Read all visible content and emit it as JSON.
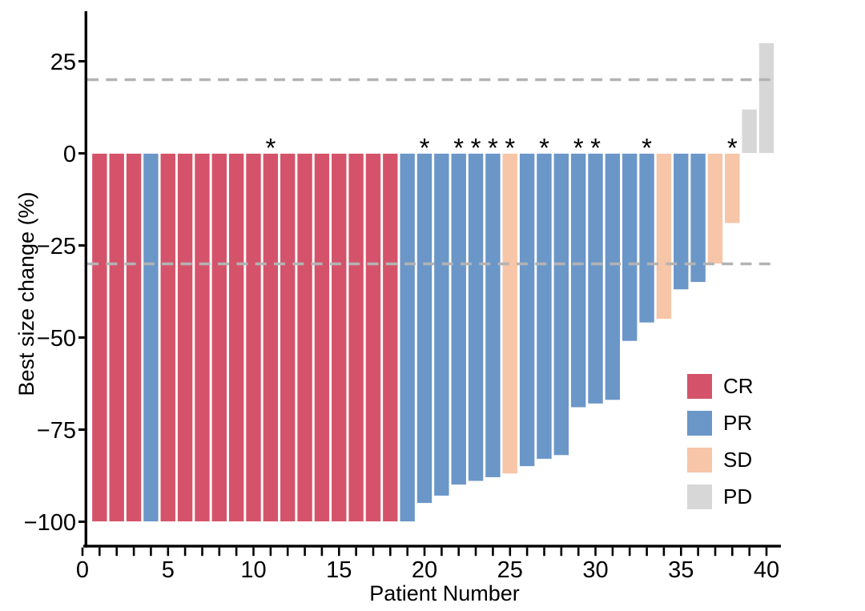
{
  "chart_data": {
    "type": "bar",
    "variant": "waterfall",
    "title": "",
    "xlabel": "Patient Number",
    "ylabel": "Best size change (%)",
    "x_major_ticks": [
      0,
      5,
      10,
      15,
      20,
      25,
      30,
      35,
      40
    ],
    "x_minor_tick_step": 1,
    "x_tick_min": 0,
    "x_tick_max": 40,
    "y_ticks": [
      25,
      0,
      -25,
      -50,
      -75,
      -100
    ],
    "ylim": [
      -109,
      38
    ],
    "grid": "off",
    "background": "#FFFFFF",
    "axis_color": "#000000",
    "bar_outline_color": "#FFFFFF",
    "annotation_symbol": "*",
    "reference_lines": [
      {
        "name": "upper-threshold",
        "y": 20,
        "color": "#B3B3B3",
        "style": "dashed"
      },
      {
        "name": "lower-threshold",
        "y": -30,
        "color": "#B3B3B3",
        "style": "dashed"
      }
    ],
    "colors": {
      "CR": "#D5536A",
      "PR": "#6B96C8",
      "SD": "#F7C5A8",
      "PD": "#D7D7D7"
    },
    "legend": {
      "position": "inside-right",
      "entries": [
        {
          "label": "CR"
        },
        {
          "label": "PR"
        },
        {
          "label": "SD"
        },
        {
          "label": "PD"
        }
      ]
    },
    "series": [
      {
        "patient": 1,
        "value": -100,
        "response": "CR",
        "star": false
      },
      {
        "patient": 2,
        "value": -100,
        "response": "CR",
        "star": false
      },
      {
        "patient": 3,
        "value": -100,
        "response": "CR",
        "star": false
      },
      {
        "patient": 4,
        "value": -100,
        "response": "PR",
        "star": false
      },
      {
        "patient": 5,
        "value": -100,
        "response": "CR",
        "star": false
      },
      {
        "patient": 6,
        "value": -100,
        "response": "CR",
        "star": false
      },
      {
        "patient": 7,
        "value": -100,
        "response": "CR",
        "star": false
      },
      {
        "patient": 8,
        "value": -100,
        "response": "CR",
        "star": false
      },
      {
        "patient": 9,
        "value": -100,
        "response": "CR",
        "star": false
      },
      {
        "patient": 10,
        "value": -100,
        "response": "CR",
        "star": false
      },
      {
        "patient": 11,
        "value": -100,
        "response": "CR",
        "star": true
      },
      {
        "patient": 12,
        "value": -100,
        "response": "CR",
        "star": false
      },
      {
        "patient": 13,
        "value": -100,
        "response": "CR",
        "star": false
      },
      {
        "patient": 14,
        "value": -100,
        "response": "CR",
        "star": false
      },
      {
        "patient": 15,
        "value": -100,
        "response": "CR",
        "star": false
      },
      {
        "patient": 16,
        "value": -100,
        "response": "CR",
        "star": false
      },
      {
        "patient": 17,
        "value": -100,
        "response": "CR",
        "star": false
      },
      {
        "patient": 18,
        "value": -100,
        "response": "CR",
        "star": false
      },
      {
        "patient": 19,
        "value": -100,
        "response": "PR",
        "star": false
      },
      {
        "patient": 20,
        "value": -95,
        "response": "PR",
        "star": true
      },
      {
        "patient": 21,
        "value": -93,
        "response": "PR",
        "star": false
      },
      {
        "patient": 22,
        "value": -90,
        "response": "PR",
        "star": true
      },
      {
        "patient": 23,
        "value": -89,
        "response": "PR",
        "star": true
      },
      {
        "patient": 24,
        "value": -88,
        "response": "PR",
        "star": true
      },
      {
        "patient": 25,
        "value": -87,
        "response": "SD",
        "star": true
      },
      {
        "patient": 26,
        "value": -85,
        "response": "PR",
        "star": false
      },
      {
        "patient": 27,
        "value": -83,
        "response": "PR",
        "star": true
      },
      {
        "patient": 28,
        "value": -82,
        "response": "PR",
        "star": false
      },
      {
        "patient": 29,
        "value": -69,
        "response": "PR",
        "star": true
      },
      {
        "patient": 30,
        "value": -68,
        "response": "PR",
        "star": true
      },
      {
        "patient": 31,
        "value": -67,
        "response": "PR",
        "star": false
      },
      {
        "patient": 32,
        "value": -51,
        "response": "PR",
        "star": false
      },
      {
        "patient": 33,
        "value": -46,
        "response": "PR",
        "star": true
      },
      {
        "patient": 34,
        "value": -45,
        "response": "SD",
        "star": false
      },
      {
        "patient": 35,
        "value": -37,
        "response": "PR",
        "star": false
      },
      {
        "patient": 36,
        "value": -35,
        "response": "PR",
        "star": false
      },
      {
        "patient": 37,
        "value": -30,
        "response": "SD",
        "star": false
      },
      {
        "patient": 38,
        "value": -19,
        "response": "SD",
        "star": true
      },
      {
        "patient": 39,
        "value": 12,
        "response": "PD",
        "star": false
      },
      {
        "patient": 40,
        "value": 30,
        "response": "PD",
        "star": false
      }
    ]
  }
}
